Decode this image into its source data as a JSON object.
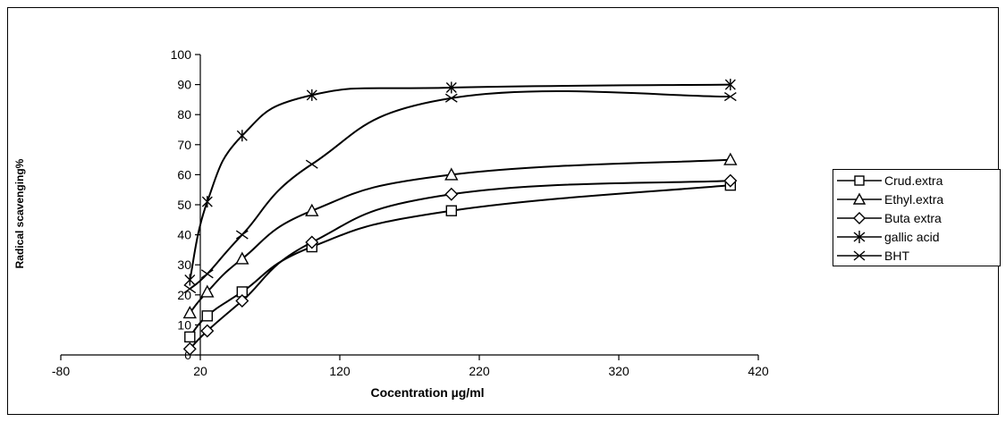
{
  "chart_data": {
    "type": "line",
    "title": "",
    "xlabel": "Cocentration µg/ml",
    "ylabel": "Radical scavenging%",
    "xlim": [
      -80,
      420
    ],
    "ylim": [
      0,
      100
    ],
    "xticks": [
      -80,
      20,
      120,
      220,
      320,
      420
    ],
    "xtick_labels": [
      "-80",
      "20",
      "120",
      "220",
      "320",
      "420"
    ],
    "yticks": [
      0,
      10,
      20,
      30,
      40,
      50,
      60,
      70,
      80,
      90,
      100
    ],
    "ytick_labels": [
      "0",
      "10",
      "20",
      "30",
      "40",
      "50",
      "60",
      "70",
      "80",
      "90",
      "100"
    ],
    "legend_position": "right",
    "series": [
      {
        "name": "Crud.extra",
        "marker": "square",
        "x": [
          12.5,
          25,
          50,
          100,
          200,
          400
        ],
        "y": [
          6,
          13,
          21,
          36,
          48,
          56.5
        ]
      },
      {
        "name": "Ethyl.extra",
        "marker": "triangle",
        "x": [
          12.5,
          25,
          50,
          100,
          200,
          400
        ],
        "y": [
          14,
          21,
          32,
          48,
          60,
          65
        ]
      },
      {
        "name": "Buta extra",
        "marker": "diamond",
        "x": [
          12.5,
          25,
          50,
          100,
          200,
          400
        ],
        "y": [
          2,
          8,
          18,
          37.5,
          53.5,
          58
        ]
      },
      {
        "name": "gallic acid",
        "marker": "asterisk",
        "x": [
          12.5,
          25,
          50,
          100,
          200,
          400
        ],
        "y": [
          25,
          51,
          73,
          86.5,
          89,
          90
        ]
      },
      {
        "name": "BHT",
        "marker": "x",
        "x": [
          12.5,
          25,
          50,
          100,
          200,
          400
        ],
        "y": [
          22,
          27,
          40,
          63.5,
          85.5,
          86
        ]
      }
    ]
  }
}
